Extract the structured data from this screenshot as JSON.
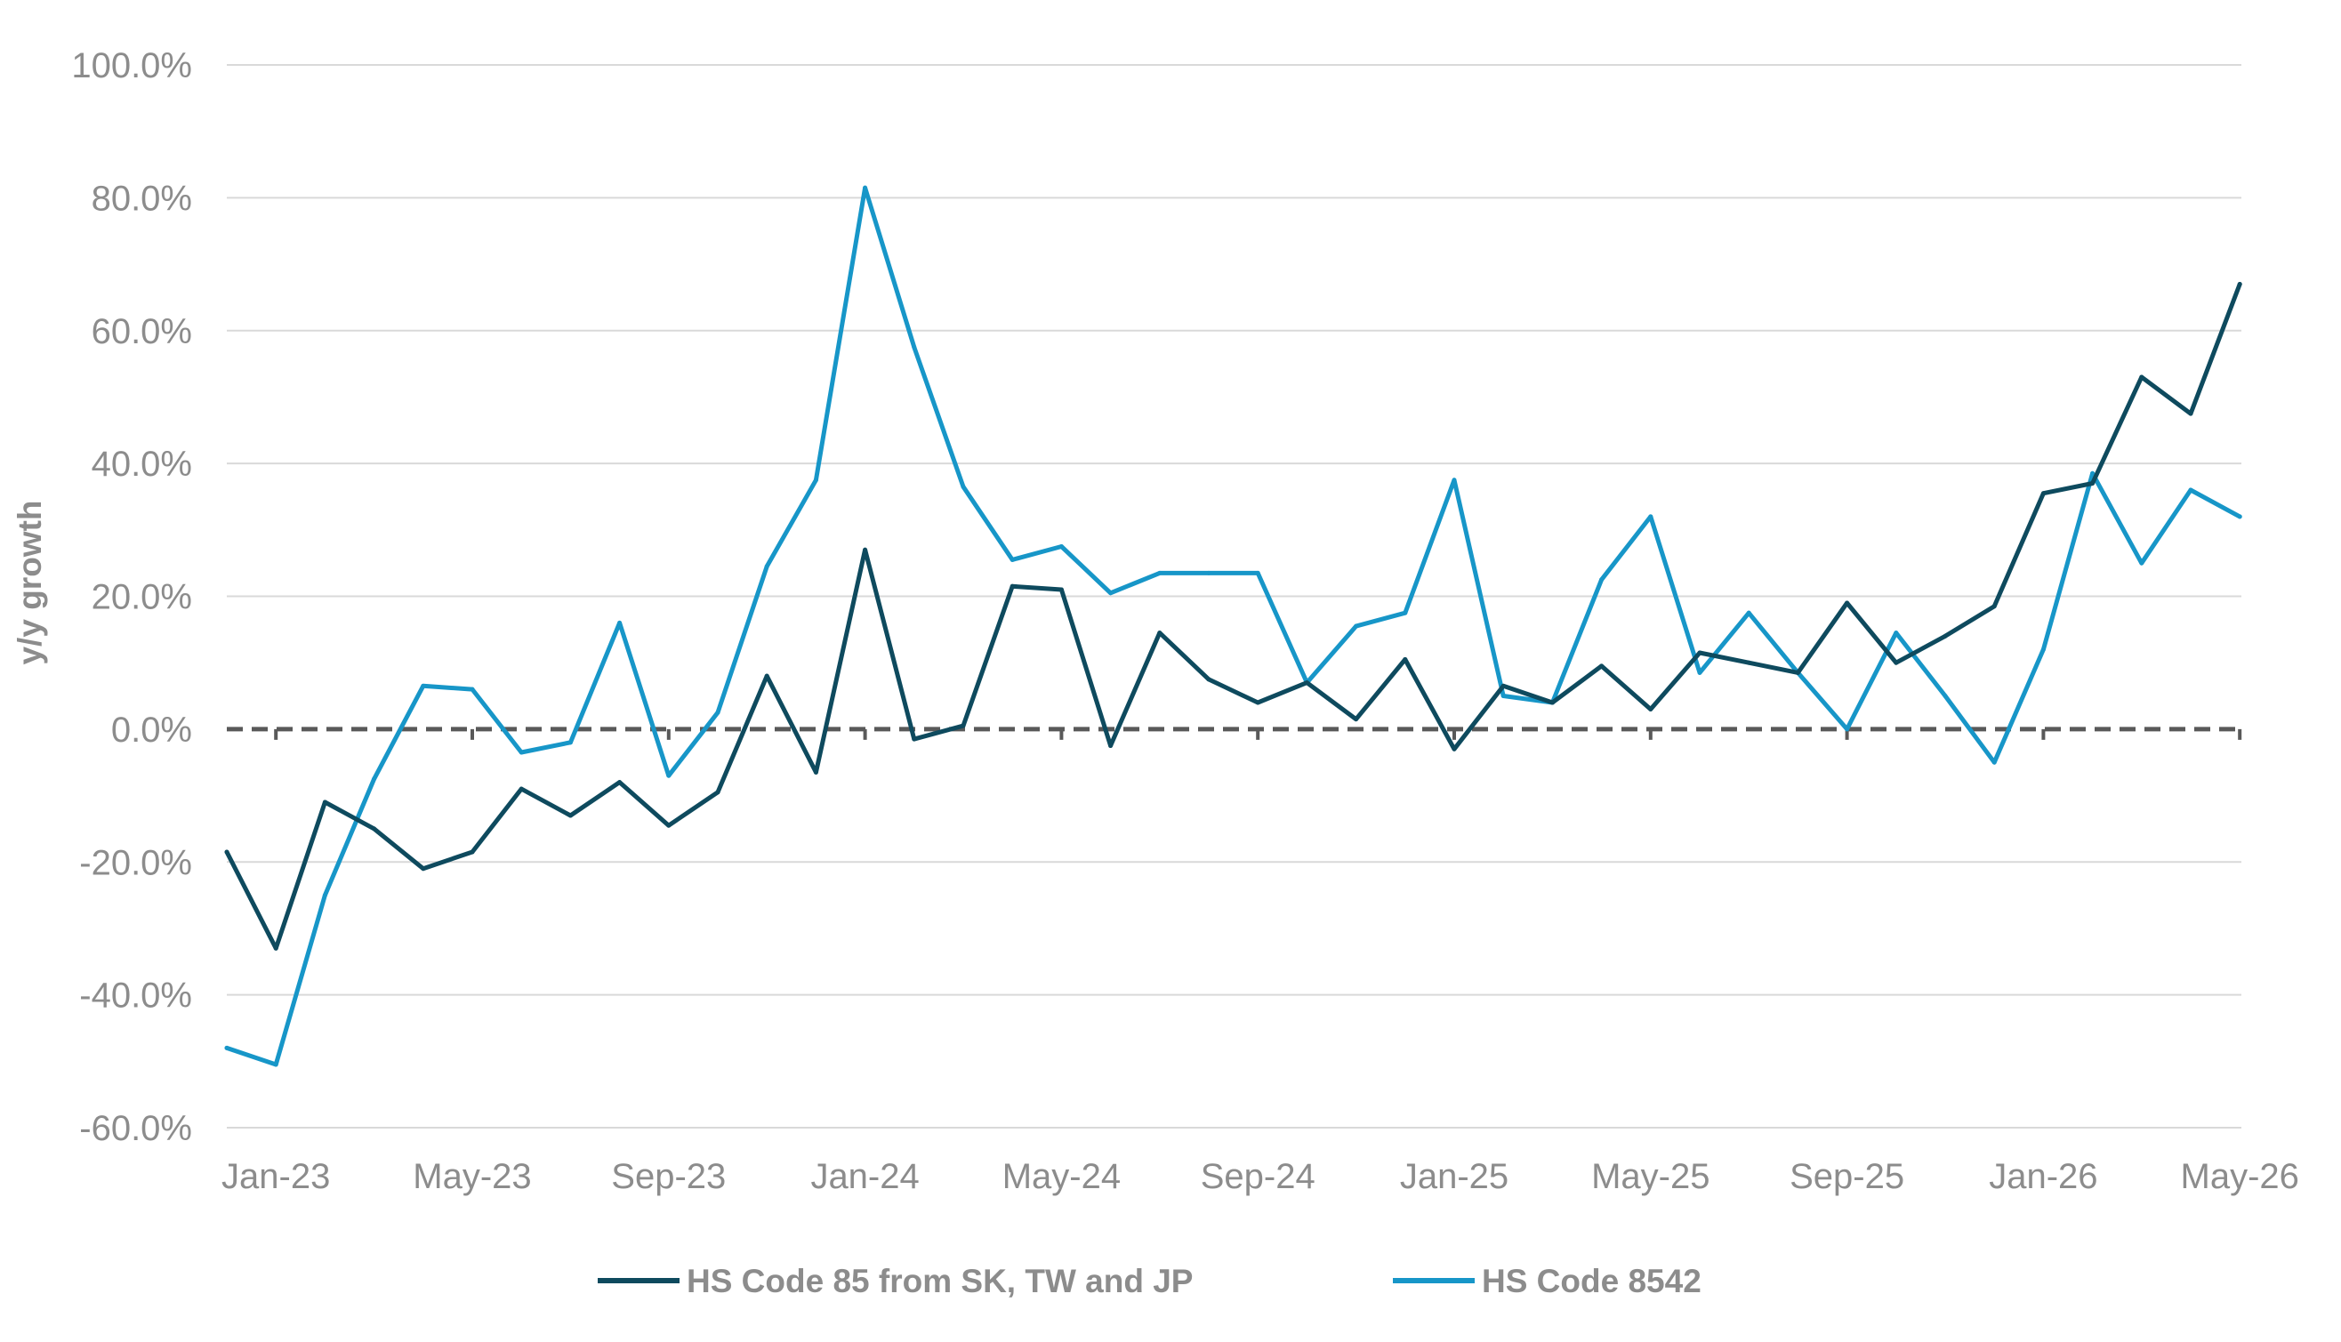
{
  "chart_data": {
    "type": "line",
    "title": "",
    "xlabel": "",
    "ylabel": "y/y growth",
    "ylim": [
      -60,
      100
    ],
    "y_tick_step": 20,
    "y_tick_labels": [
      "-60.0%",
      "-40.0%",
      "-20.0%",
      "0.0%",
      "20.0%",
      "40.0%",
      "60.0%",
      "80.0%",
      "100.0%"
    ],
    "x_tick_labels": [
      "Jan-23",
      "May-23",
      "Sep-23",
      "Jan-24",
      "May-24",
      "Sep-24",
      "Jan-25",
      "May-25",
      "Sep-25",
      "Jan-26",
      "May-26"
    ],
    "categories": [
      "Dec-22",
      "Jan-23",
      "Feb-23",
      "Mar-23",
      "Apr-23",
      "May-23",
      "Jun-23",
      "Jul-23",
      "Aug-23",
      "Sep-23",
      "Oct-23",
      "Nov-23",
      "Dec-23",
      "Jan-24",
      "Feb-24",
      "Mar-24",
      "Apr-24",
      "May-24",
      "Jun-24",
      "Jul-24",
      "Aug-24",
      "Sep-24",
      "Oct-24",
      "Nov-24",
      "Dec-24",
      "Jan-25",
      "Feb-25",
      "Mar-25",
      "Apr-25",
      "May-25",
      "Jun-25",
      "Jul-25",
      "Aug-25",
      "Sep-25",
      "Oct-25",
      "Nov-25",
      "Dec-25",
      "Jan-26",
      "Feb-26",
      "Mar-26",
      "Apr-26",
      "May-26"
    ],
    "reference_line": {
      "y": 0,
      "style": "dashed",
      "color": "#595959"
    },
    "grid": true,
    "legend_position": "bottom",
    "series": [
      {
        "name": "HS Code 85 from SK, TW and JP",
        "color": "#0e4a5e",
        "values": [
          -18.5,
          -33,
          -11,
          -15,
          -21,
          -18.5,
          -9,
          -13,
          -8,
          -14.5,
          -9.5,
          8,
          -6.5,
          27,
          -1.5,
          0.5,
          21.5,
          21,
          -2.5,
          14.5,
          7.5,
          4,
          7,
          1.5,
          10.5,
          -3,
          6.5,
          4,
          9.5,
          3,
          11.5,
          10,
          8.5,
          19,
          10,
          14,
          18.5,
          35.5,
          37,
          53,
          47.5,
          67
        ]
      },
      {
        "name": "HS Code 8542",
        "color": "#1796c8",
        "values": [
          -48,
          -50.5,
          -25,
          -7.5,
          6.5,
          6,
          -3.5,
          -2,
          16,
          -7,
          2.5,
          24.5,
          37.5,
          81.5,
          57.5,
          36.5,
          25.5,
          27.5,
          20.5,
          23.5,
          23.5,
          23.5,
          7,
          15.5,
          17.5,
          37.5,
          5,
          4,
          22.5,
          32,
          8.5,
          17.5,
          8.5,
          0,
          14.5,
          5,
          -5,
          12,
          38.5,
          25,
          36,
          32
        ]
      }
    ]
  }
}
